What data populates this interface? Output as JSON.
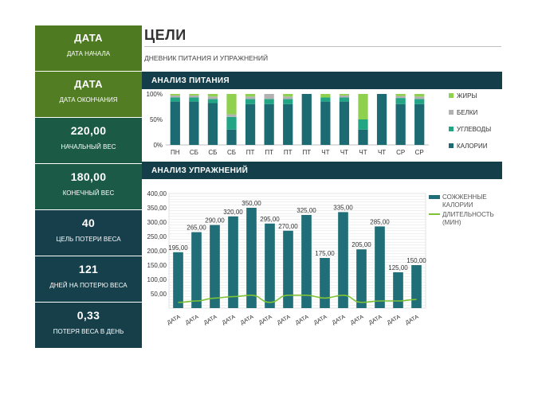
{
  "sidebar": [
    {
      "value": "ДАТА",
      "label": "ДАТА НАЧАЛА"
    },
    {
      "value": "ДАТА",
      "label": "ДАТА ОКОНЧАНИЯ"
    },
    {
      "value": "220,00",
      "label": "НАЧАЛЬНЫЙ ВЕС"
    },
    {
      "value": "180,00",
      "label": "КОНЕЧНЫЙ ВЕС"
    },
    {
      "value": "40",
      "label": "ЦЕЛЬ ПОТЕРИ ВЕСА"
    },
    {
      "value": "121",
      "label": "ДНЕЙ НА ПОТЕРЮ ВЕСА"
    },
    {
      "value": "0,33",
      "label": "ПОТЕРЯ ВЕСА В ДЕНЬ"
    }
  ],
  "header": {
    "title": "ЦЕЛИ",
    "subtitle": "ДНЕВНИК ПИТАНИЯ И УПРАЖНЕНИЙ"
  },
  "sections": {
    "nutrition": "АНАЛИЗ ПИТАНИЯ",
    "exercise": "АНАЛИЗ УПРАЖНЕНИЙ"
  },
  "colors": {
    "calories": "#1c6b73",
    "carbs": "#21a584",
    "proteins": "#b2b2b2",
    "fats": "#8fd14f",
    "burned": "#1f6e78",
    "duration": "#7ec235"
  },
  "chart_data": [
    {
      "type": "bar",
      "stacked": "percent",
      "categories": [
        "ПН",
        "СБ",
        "СБ",
        "СБ",
        "ПТ",
        "ПТ",
        "ПТ",
        "ПТ",
        "ЧТ",
        "ЧТ",
        "ЧТ",
        "ЧТ",
        "СР",
        "СР"
      ],
      "series": [
        {
          "name": "КАЛОРИИ",
          "values": [
            85,
            85,
            82,
            30,
            80,
            80,
            80,
            100,
            85,
            85,
            30,
            100,
            80,
            80
          ]
        },
        {
          "name": "УГЛЕВОДЫ",
          "values": [
            8,
            8,
            8,
            25,
            10,
            10,
            10,
            0,
            8,
            8,
            20,
            0,
            12,
            10
          ]
        },
        {
          "name": "БЕЛКИ",
          "values": [
            4,
            4,
            5,
            5,
            5,
            10,
            5,
            0,
            0,
            4,
            0,
            0,
            4,
            5
          ]
        },
        {
          "name": "ЖИРЫ",
          "values": [
            3,
            3,
            5,
            40,
            5,
            0,
            5,
            0,
            7,
            3,
            50,
            0,
            4,
            5
          ]
        }
      ],
      "ytick_labels": [
        "0%",
        "50%",
        "100%"
      ],
      "ylim": [
        0,
        100
      ],
      "legend_placement": "right"
    },
    {
      "type": "bar+line",
      "categories": [
        "ДАТА",
        "ДАТА",
        "ДАТА",
        "ДАТА",
        "ДАТА",
        "ДАТА",
        "ДАТА",
        "ДАТА",
        "ДАТА",
        "ДАТА",
        "ДАТА",
        "ДАТА",
        "ДАТА",
        "ДАТА"
      ],
      "series": [
        {
          "name": "СОЖЖЕННЫЕ КАЛОРИИ",
          "type": "bar",
          "values": [
            195,
            265,
            290,
            320,
            350,
            295,
            270,
            325,
            175,
            335,
            205,
            285,
            125,
            150
          ],
          "labels": [
            "195,00",
            "265,00",
            "290,00",
            "320,00",
            "350,00",
            "295,00",
            "270,00",
            "325,00",
            "175,00",
            "335,00",
            "205,00",
            "285,00",
            "125,00",
            "150,00"
          ]
        },
        {
          "name": "ДЛИТЕЛЬНОСТЬ (МИН)",
          "type": "line",
          "values": [
            20,
            25,
            35,
            40,
            45,
            20,
            45,
            45,
            35,
            45,
            20,
            25,
            25,
            30
          ]
        }
      ],
      "ytick_labels": [
        "50,00",
        "100,00",
        "150,00",
        "200,00",
        "250,00",
        "300,00",
        "350,00",
        "400,00"
      ],
      "ylim": [
        0,
        400
      ],
      "legend_placement": "right"
    }
  ]
}
